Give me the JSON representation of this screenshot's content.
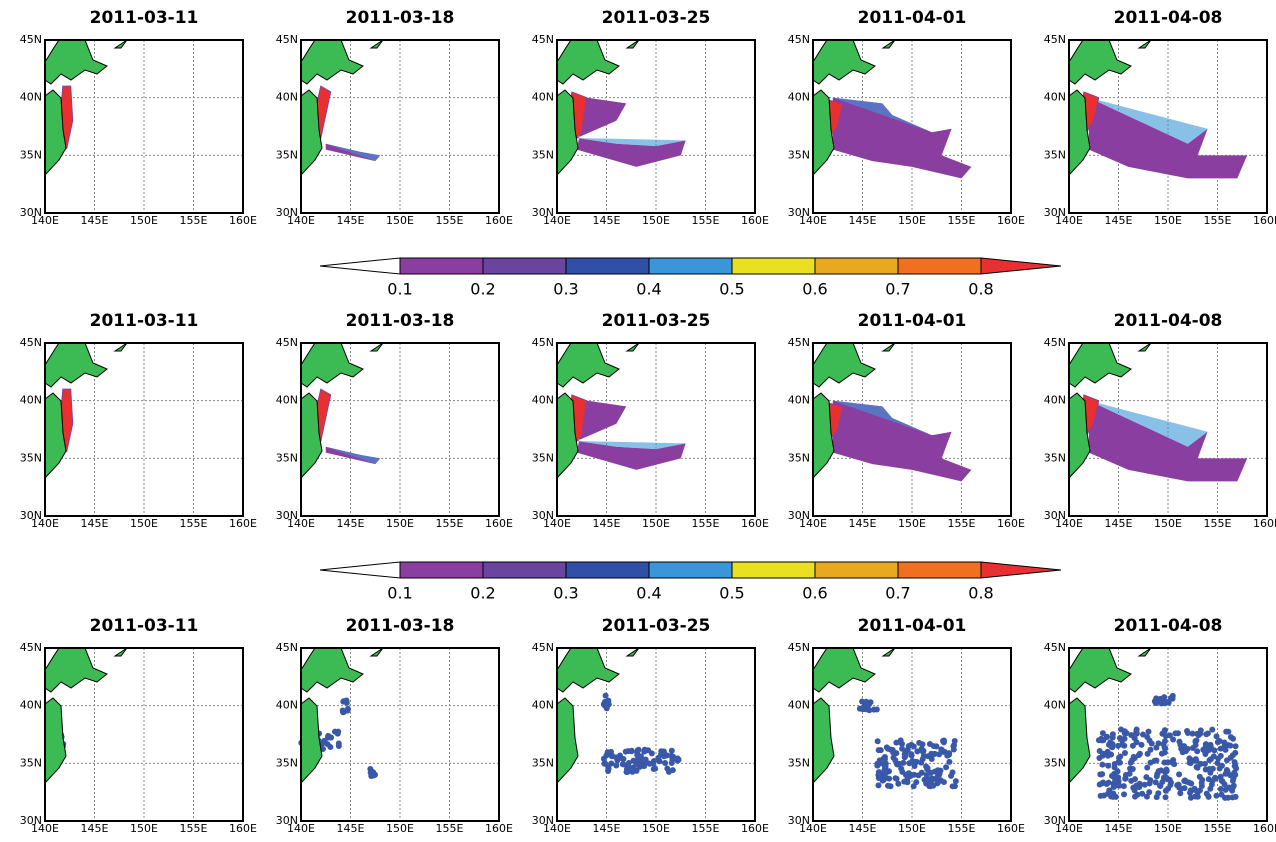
{
  "rows": [
    {
      "panels": [
        {
          "title": "2011-03-11"
        },
        {
          "title": "2011-03-18"
        },
        {
          "title": "2011-03-25"
        },
        {
          "title": "2011-04-01"
        },
        {
          "title": "2011-04-08"
        }
      ]
    },
    {
      "panels": [
        {
          "title": "2011-03-11"
        },
        {
          "title": "2011-03-18"
        },
        {
          "title": "2011-03-25"
        },
        {
          "title": "2011-04-01"
        },
        {
          "title": "2011-04-08"
        }
      ]
    },
    {
      "panels": [
        {
          "title": "2011-03-11"
        },
        {
          "title": "2011-03-18"
        },
        {
          "title": "2011-03-25"
        },
        {
          "title": "2011-04-01"
        },
        {
          "title": "2011-04-08"
        }
      ]
    }
  ],
  "axes": {
    "yticks": [
      "45N",
      "40N",
      "35N",
      "30N"
    ],
    "xticks": [
      "140E",
      "145E",
      "150E",
      "155E",
      "160E"
    ]
  },
  "colorbar": {
    "labels": [
      "0.1",
      "0.2",
      "0.3",
      "0.4",
      "0.5",
      "0.6",
      "0.7",
      "0.8"
    ],
    "colors": [
      "#ffffff",
      "#8a3fa0",
      "#6a45a0",
      "#3050a8",
      "#3a96d8",
      "#e8e020",
      "#e8a820",
      "#f07020",
      "#e83030"
    ]
  }
}
